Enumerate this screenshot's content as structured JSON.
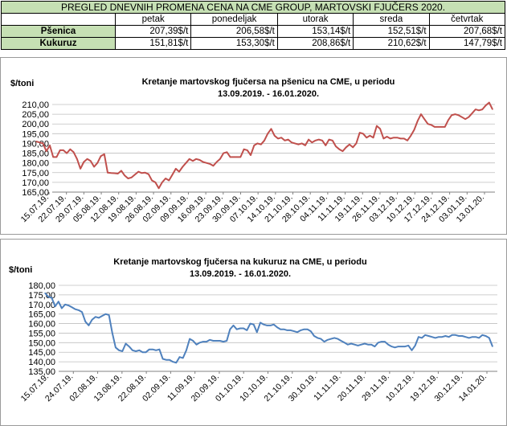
{
  "table": {
    "title": "PREGLED DNEVNIH PROMENA CENA NA CME GROUP, MARTOVSKI  FJUČERS 2020.",
    "columns": [
      "petak",
      "ponedeljak",
      "utorak",
      "sreda",
      "četvrtak"
    ],
    "rows": [
      {
        "label": "Pšenica",
        "values": [
          "207,39$/t",
          "206,58$/t",
          "153,14$/t",
          "152,51$/t",
          "207,68$/t"
        ]
      },
      {
        "label": "Kukuruz",
        "values": [
          "151,81$/t",
          "153,30$/t",
          "208,86$/t",
          "210,62$/t",
          "147,79$/t"
        ]
      }
    ]
  },
  "chart_data": [
    {
      "type": "line",
      "title": "Kretanje martovskog fjučersa na  pšenicu na CME, u periodu",
      "subtitle": "13.09.2019. - 16.01.2020.",
      "ylabel": "$/toni",
      "xlabel": "",
      "ylim": [
        165,
        210
      ],
      "yticks": [
        "165,00",
        "170,00",
        "175,00",
        "180,00",
        "185,00",
        "190,00",
        "195,00",
        "200,00",
        "205,00",
        "210,00"
      ],
      "xticks": [
        "15.07.19.",
        "22.07.19.",
        "29.07.19.",
        "05.08.19.",
        "12.08.19.",
        "19.08.19.",
        "26.08.19.",
        "02.09.19.",
        "09.09.19.",
        "16.09.19.",
        "23.09.19.",
        "30.09.19.",
        "07.10.19.",
        "14.10.19.",
        "21.10.19.",
        "28.10.19.",
        "04.11.19.",
        "11.11.19.",
        "19.11.19.",
        "26.11.19.",
        "03.12.19.",
        "10.12.19.",
        "17.12.19.",
        "24.12.19.",
        "03.01.19.",
        "13.01.20."
      ],
      "grid": true,
      "color": "#c0504d",
      "series": [
        {
          "values": [
            191,
            190.5,
            190,
            186,
            189,
            183,
            183,
            186.5,
            186.5,
            185,
            187,
            185.5,
            182,
            177,
            180.5,
            182,
            181,
            178,
            180,
            183.5,
            184.5,
            175,
            174.8,
            174.7,
            174.5,
            176,
            173.5,
            172,
            172.5,
            174,
            175.5,
            174.8,
            175,
            174.2,
            171,
            170,
            167,
            170,
            172,
            171,
            174,
            177,
            175.5,
            178,
            180,
            182,
            181,
            182,
            181.5,
            180.5,
            180,
            179.5,
            178.5,
            180.5,
            182,
            185,
            185.5,
            183,
            183,
            183,
            183,
            187,
            186.5,
            184,
            189,
            190,
            189.5,
            191.5,
            195,
            197.5,
            194,
            192.5,
            193,
            191.5,
            192,
            190.5,
            190,
            189.5,
            190,
            189,
            192,
            190.5,
            191.5,
            192,
            191.5,
            189,
            192,
            191.5,
            188.5,
            187,
            186,
            188,
            189.5,
            188,
            190,
            195.5,
            195,
            193,
            194,
            193,
            199,
            197.5,
            192.5,
            193.5,
            192.5,
            193,
            193,
            192.5,
            192.5,
            191.5,
            194,
            197,
            201.5,
            205,
            202.5,
            200,
            199.5,
            198.5,
            198.5,
            198.5,
            198.5,
            202,
            204.5,
            205,
            204.5,
            203.5,
            202.5,
            203.5,
            205.5,
            207.5,
            207,
            207.5,
            209.5,
            211,
            207.5
          ]
        }
      ]
    },
    {
      "type": "line",
      "title": "Kretanje martovskog fjučersa na  kukuruz na CME, u periodu",
      "subtitle": "13.09.2019. - 16.01.2020.",
      "ylabel": "$/toni",
      "xlabel": "",
      "ylim": [
        135,
        180
      ],
      "yticks": [
        "135,00",
        "140,00",
        "145,00",
        "150,00",
        "155,00",
        "160,00",
        "165,00",
        "170,00",
        "175,00",
        "180,00"
      ],
      "xticks": [
        "15.07.19.",
        "24.07.19.",
        "02.08.19.",
        "13.08.19.",
        "22.08.19.",
        "02.09.19.",
        "11.09.19.",
        "20.09.19.",
        "01.10.19.",
        "10.10.19.",
        "21.10.19.",
        "30.10.19.",
        "11.11.19.",
        "20.11.19.",
        "29.11.19.",
        "10.12.19.",
        "19.12.19.",
        "30.12.19.",
        "14.01.20."
      ],
      "grid": true,
      "color": "#4f81bd",
      "series": [
        {
          "values": [
            176,
            174,
            173.5,
            169,
            171.5,
            168,
            170,
            169.5,
            168.5,
            167.5,
            167,
            166,
            161,
            159,
            162,
            163.5,
            163,
            164,
            165,
            164.5,
            155,
            147.5,
            146,
            145.5,
            149.5,
            148,
            146,
            145.5,
            146,
            145,
            145,
            146.5,
            146.5,
            146,
            146.5,
            141.5,
            141,
            141,
            140,
            139.5,
            142.5,
            142,
            146,
            152,
            151,
            149,
            150,
            150.5,
            150.5,
            151.5,
            151,
            151,
            151,
            150.5,
            151,
            157,
            159,
            157,
            157.5,
            157.5,
            156.5,
            160,
            159.5,
            155.5,
            160.5,
            159.5,
            159,
            159,
            159.5,
            158,
            157,
            157,
            156.5,
            156.5,
            156,
            155.5,
            156.5,
            157,
            157,
            156,
            153.5,
            152.5,
            152,
            150.5,
            151.5,
            152,
            152.5,
            152,
            151,
            150,
            149,
            149.5,
            149,
            148.5,
            149,
            149.5,
            149,
            149,
            148,
            150,
            150.5,
            150.5,
            149,
            148,
            147.5,
            148,
            148,
            148,
            148.5,
            146,
            148.5,
            153,
            152.5,
            154,
            153.5,
            153,
            152.5,
            153,
            153,
            153.5,
            153,
            154,
            154,
            153.5,
            153.5,
            153,
            152.5,
            153,
            153,
            152.5,
            154,
            153.5,
            152.5,
            148
          ]
        }
      ]
    }
  ]
}
